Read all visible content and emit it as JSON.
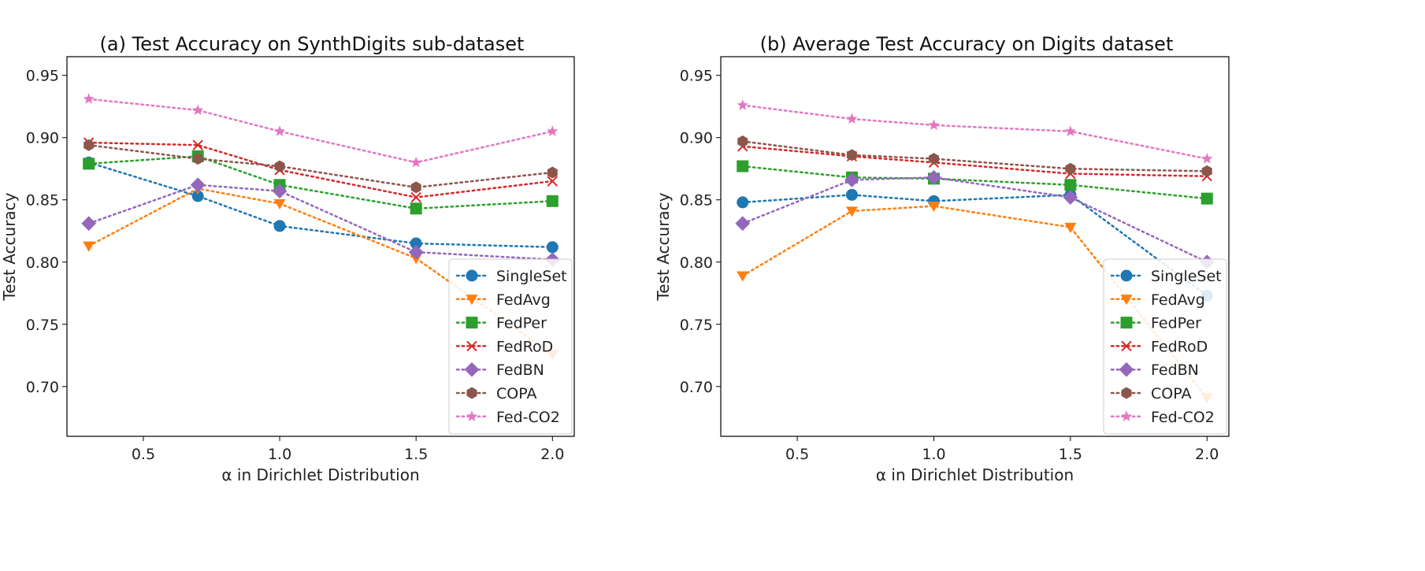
{
  "chart_data": [
    {
      "type": "line",
      "title": "(a) Test Accuracy on SynthDigits sub-dataset",
      "xlabel": "α in Dirichlet Distribution",
      "ylabel": "Test Accuracy",
      "xlim": [
        0.22,
        2.08
      ],
      "ylim": [
        0.66,
        0.965
      ],
      "xticks": [
        "0.5",
        "1.0",
        "1.5",
        "2.0"
      ],
      "xtick_values": [
        0.5,
        1.0,
        1.5,
        2.0
      ],
      "yticks": [
        "0.70",
        "0.75",
        "0.80",
        "0.85",
        "0.90",
        "0.95"
      ],
      "ytick_values": [
        0.7,
        0.75,
        0.8,
        0.85,
        0.9,
        0.95
      ],
      "legend_location": "lower-right",
      "x": [
        0.3,
        0.7,
        1.0,
        1.5,
        2.0
      ],
      "series": [
        {
          "name": "SingleSet",
          "color": "#1f77b4",
          "marker": "circle",
          "values": [
            0.88,
            0.853,
            0.829,
            0.815,
            0.812
          ]
        },
        {
          "name": "FedAvg",
          "color": "#ff7f0e",
          "marker": "triangle-down",
          "values": [
            0.813,
            0.859,
            0.847,
            0.803,
            0.726
          ]
        },
        {
          "name": "FedPer",
          "color": "#2ca02c",
          "marker": "square",
          "values": [
            0.879,
            0.885,
            0.862,
            0.843,
            0.849
          ]
        },
        {
          "name": "FedRoD",
          "color": "#d62728",
          "marker": "x",
          "values": [
            0.896,
            0.894,
            0.874,
            0.852,
            0.865
          ]
        },
        {
          "name": "FedBN",
          "color": "#9467bd",
          "marker": "diamond",
          "values": [
            0.831,
            0.862,
            0.857,
            0.808,
            0.802
          ]
        },
        {
          "name": "COPA",
          "color": "#8c564b",
          "marker": "hexagon",
          "values": [
            0.894,
            0.883,
            0.877,
            0.86,
            0.872
          ]
        },
        {
          "name": "Fed-CO2",
          "color": "#e377c2",
          "marker": "star",
          "values": [
            0.931,
            0.922,
            0.905,
            0.88,
            0.905
          ]
        }
      ]
    },
    {
      "type": "line",
      "title": "(b) Average Test Accuracy on Digits dataset",
      "xlabel": "α in Dirichlet Distribution",
      "ylabel": "Test Accuracy",
      "xlim": [
        0.22,
        2.08
      ],
      "ylim": [
        0.66,
        0.965
      ],
      "xticks": [
        "0.5",
        "1.0",
        "1.5",
        "2.0"
      ],
      "xtick_values": [
        0.5,
        1.0,
        1.5,
        2.0
      ],
      "yticks": [
        "0.70",
        "0.75",
        "0.80",
        "0.85",
        "0.90",
        "0.95"
      ],
      "ytick_values": [
        0.7,
        0.75,
        0.8,
        0.85,
        0.9,
        0.95
      ],
      "legend_location": "lower-right",
      "x": [
        0.3,
        0.7,
        1.0,
        1.5,
        2.0
      ],
      "series": [
        {
          "name": "SingleSet",
          "color": "#1f77b4",
          "marker": "circle",
          "values": [
            0.848,
            0.854,
            0.849,
            0.854,
            0.773
          ]
        },
        {
          "name": "FedAvg",
          "color": "#ff7f0e",
          "marker": "triangle-down",
          "values": [
            0.789,
            0.841,
            0.845,
            0.828,
            0.691
          ]
        },
        {
          "name": "FedPer",
          "color": "#2ca02c",
          "marker": "square",
          "values": [
            0.877,
            0.868,
            0.867,
            0.862,
            0.851
          ]
        },
        {
          "name": "FedRoD",
          "color": "#d62728",
          "marker": "x",
          "values": [
            0.893,
            0.885,
            0.88,
            0.871,
            0.869
          ]
        },
        {
          "name": "FedBN",
          "color": "#9467bd",
          "marker": "diamond",
          "values": [
            0.831,
            0.866,
            0.868,
            0.852,
            0.8
          ]
        },
        {
          "name": "COPA",
          "color": "#8c564b",
          "marker": "hexagon",
          "values": [
            0.897,
            0.886,
            0.883,
            0.875,
            0.873
          ]
        },
        {
          "name": "Fed-CO2",
          "color": "#e377c2",
          "marker": "star",
          "values": [
            0.926,
            0.915,
            0.91,
            0.905,
            0.883
          ]
        }
      ]
    }
  ]
}
